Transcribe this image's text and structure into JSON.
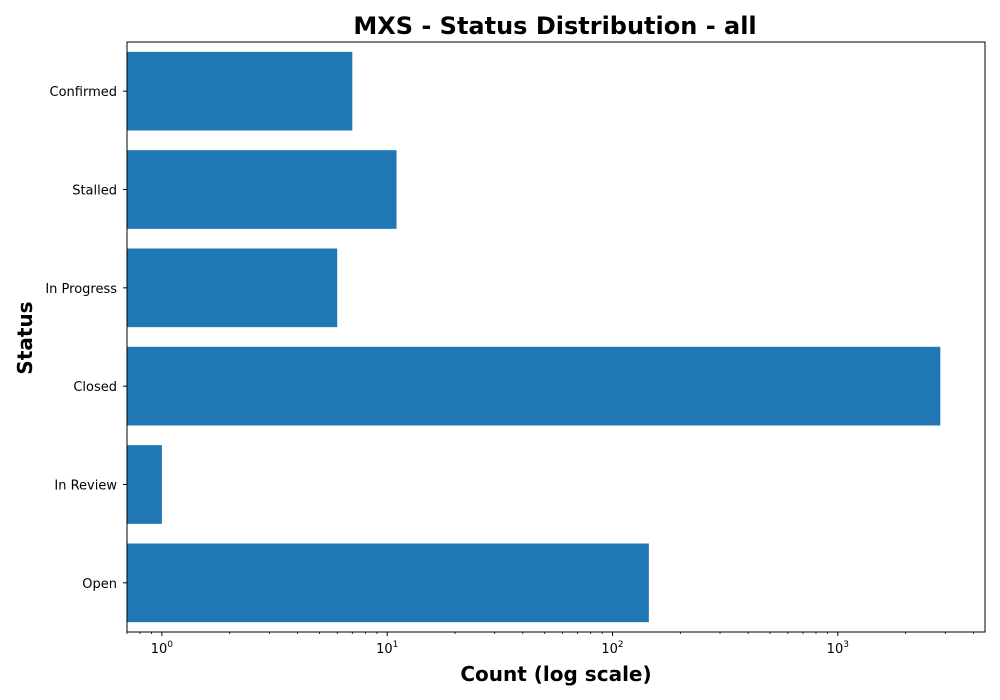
{
  "chart_data": {
    "type": "bar",
    "orientation": "horizontal",
    "title": "MXS - Status Distribution - all",
    "xlabel": "Count (log scale)",
    "ylabel": "Status",
    "x_scale": "log",
    "xlim": [
      0.7,
      4500
    ],
    "x_ticks": [
      {
        "value": 1,
        "base": "10",
        "exp": "0"
      },
      {
        "value": 10,
        "base": "10",
        "exp": "1"
      },
      {
        "value": 100,
        "base": "10",
        "exp": "2"
      },
      {
        "value": 1000,
        "base": "10",
        "exp": "3"
      }
    ],
    "categories": [
      "Open",
      "In Review",
      "Closed",
      "In Progress",
      "Stalled",
      "Confirmed"
    ],
    "values": [
      145,
      1,
      2850,
      6,
      11,
      7
    ],
    "bar_color": "#1f77b4",
    "grid": false,
    "legend": false
  }
}
